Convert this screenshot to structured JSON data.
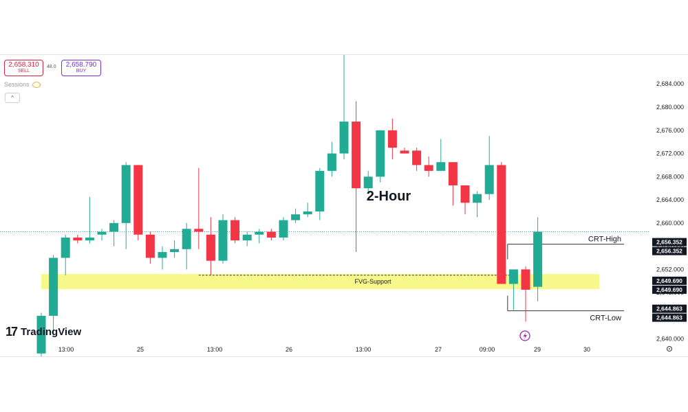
{
  "trade_panel": {
    "sell": {
      "price": "2,658.310",
      "label": "SELL"
    },
    "spread": "48.0",
    "buy": {
      "price": "2,658.790",
      "label": "BUY"
    }
  },
  "indicators": {
    "sessions_label": "Sessions",
    "collapse_glyph": "^"
  },
  "brand": {
    "logo_text": "TradingView"
  },
  "colors": {
    "up": "#22ab94",
    "down": "#f23645",
    "fvg_zone": "#f7f88a",
    "dotted_price_line": "#22ab94"
  },
  "chart_data": {
    "type": "candlestick",
    "title": "2-Hour",
    "y_axis_ticks": [
      "2,640.000",
      "2,644.000",
      "2,648.000",
      "2,652.000",
      "2,656.000",
      "2,660.000",
      "2,664.000",
      "2,668.000",
      "2,672.000",
      "2,676.000",
      "2,680.000",
      "2,684.000"
    ],
    "ylim": [
      2637,
      2689
    ],
    "x_axis_ticks": [
      "13:00",
      "25",
      "13:00",
      "26",
      "13:00",
      "27",
      "09:00",
      "29",
      "30"
    ],
    "annotations": {
      "fvg": {
        "label": "FVG-Support",
        "low": 2648.6,
        "high": 2651.2,
        "line": 2651.0
      },
      "crt_high": {
        "label": "CRT-High",
        "price": 2656.352
      },
      "crt_low": {
        "label": "CRT-Low",
        "price": 2644.863
      }
    },
    "price_labels": [
      "2,656.352",
      "2,656.352",
      "2,649.690",
      "2,649.690",
      "2,644.863",
      "2,644.863"
    ],
    "candles": [
      {
        "o": 2637.5,
        "h": 2644.5,
        "l": 2637.0,
        "c": 2644.0
      },
      {
        "o": 2644.0,
        "h": 2654.5,
        "l": 2641.0,
        "c": 2654.0
      },
      {
        "o": 2654.0,
        "h": 2658.0,
        "l": 2651.0,
        "c": 2657.5
      },
      {
        "o": 2657.5,
        "h": 2658.0,
        "l": 2656.5,
        "c": 2657.0
      },
      {
        "o": 2657.0,
        "h": 2664.5,
        "l": 2656.5,
        "c": 2657.5
      },
      {
        "o": 2658.0,
        "h": 2659.0,
        "l": 2657.0,
        "c": 2658.5
      },
      {
        "o": 2658.5,
        "h": 2660.5,
        "l": 2656.0,
        "c": 2660.0
      },
      {
        "o": 2660.0,
        "h": 2670.5,
        "l": 2655.5,
        "c": 2670.0
      },
      {
        "o": 2670.0,
        "h": 2670.0,
        "l": 2657.0,
        "c": 2658.0
      },
      {
        "o": 2658.0,
        "h": 2658.5,
        "l": 2653.0,
        "c": 2654.0
      },
      {
        "o": 2654.0,
        "h": 2656.0,
        "l": 2652.0,
        "c": 2655.0
      },
      {
        "o": 2655.0,
        "h": 2657.0,
        "l": 2654.0,
        "c": 2655.5
      },
      {
        "o": 2655.5,
        "h": 2660.0,
        "l": 2652.0,
        "c": 2659.0
      },
      {
        "o": 2659.0,
        "h": 2669.5,
        "l": 2655.5,
        "c": 2658.5
      },
      {
        "o": 2658.0,
        "h": 2661.0,
        "l": 2651.0,
        "c": 2653.5
      },
      {
        "o": 2653.5,
        "h": 2661.5,
        "l": 2653.0,
        "c": 2660.5
      },
      {
        "o": 2660.5,
        "h": 2661.0,
        "l": 2656.5,
        "c": 2657.0
      },
      {
        "o": 2657.0,
        "h": 2658.5,
        "l": 2656.0,
        "c": 2658.0
      },
      {
        "o": 2658.0,
        "h": 2659.0,
        "l": 2656.5,
        "c": 2658.5
      },
      {
        "o": 2658.5,
        "h": 2659.0,
        "l": 2657.0,
        "c": 2657.5
      },
      {
        "o": 2657.5,
        "h": 2661.0,
        "l": 2657.0,
        "c": 2660.5
      },
      {
        "o": 2660.5,
        "h": 2662.5,
        "l": 2660.0,
        "c": 2661.5
      },
      {
        "o": 2661.5,
        "h": 2663.5,
        "l": 2661.0,
        "c": 2662.0
      },
      {
        "o": 2662.0,
        "h": 2669.5,
        "l": 2660.5,
        "c": 2669.0
      },
      {
        "o": 2669.0,
        "h": 2674.0,
        "l": 2668.0,
        "c": 2672.0
      },
      {
        "o": 2672.0,
        "h": 2689.0,
        "l": 2671.0,
        "c": 2677.5
      },
      {
        "o": 2677.5,
        "h": 2681.0,
        "l": 2655.0,
        "c": 2666.0
      },
      {
        "o": 2666.0,
        "h": 2669.0,
        "l": 2665.0,
        "c": 2668.0
      },
      {
        "o": 2668.0,
        "h": 2676.0,
        "l": 2667.0,
        "c": 2676.0
      },
      {
        "o": 2676.0,
        "h": 2678.0,
        "l": 2671.0,
        "c": 2673.0
      },
      {
        "o": 2672.5,
        "h": 2673.0,
        "l": 2672.0,
        "c": 2672.0
      },
      {
        "o": 2672.5,
        "h": 2673.0,
        "l": 2669.0,
        "c": 2670.0
      },
      {
        "o": 2670.0,
        "h": 2671.5,
        "l": 2668.0,
        "c": 2669.0
      },
      {
        "o": 2669.0,
        "h": 2674.5,
        "l": 2669.0,
        "c": 2670.5
      },
      {
        "o": 2670.5,
        "h": 2670.5,
        "l": 2663.0,
        "c": 2666.5
      },
      {
        "o": 2666.5,
        "h": 2666.5,
        "l": 2661.5,
        "c": 2663.5
      },
      {
        "o": 2663.5,
        "h": 2665.5,
        "l": 2661.0,
        "c": 2665.0
      },
      {
        "o": 2665.0,
        "h": 2675.0,
        "l": 2664.0,
        "c": 2670.0
      },
      {
        "o": 2670.0,
        "h": 2670.5,
        "l": 2649.5,
        "c": 2649.5
      },
      {
        "o": 2649.5,
        "h": 2652.0,
        "l": 2645.0,
        "c": 2652.0
      },
      {
        "o": 2652.0,
        "h": 2652.5,
        "l": 2643.0,
        "c": 2648.5
      },
      {
        "o": 2649.0,
        "h": 2661.0,
        "l": 2646.5,
        "c": 2658.5
      }
    ]
  }
}
